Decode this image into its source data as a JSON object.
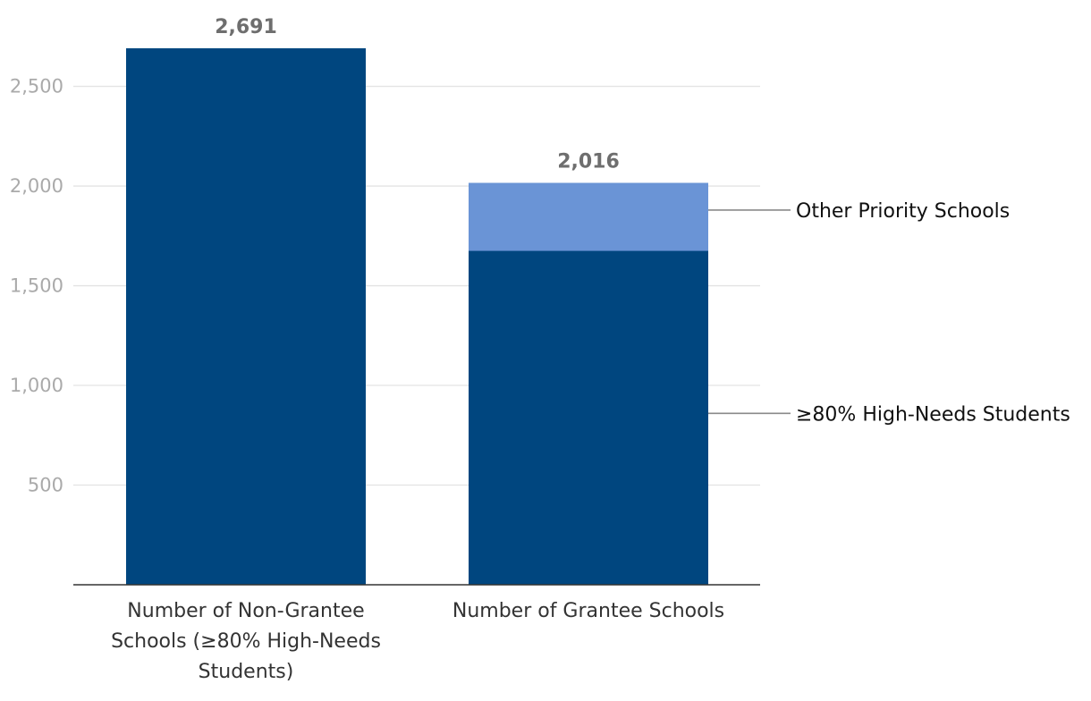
{
  "chart_data": {
    "type": "bar",
    "stacked": true,
    "categories": [
      [
        "Number of Non-Grantee",
        "Schools (≥80% High-Needs",
        "Students)"
      ],
      [
        "Number of Grantee Schools"
      ]
    ],
    "series": [
      {
        "name": "≥80% High-Needs Students",
        "values": [
          2691,
          1675
        ],
        "color": "#00467f"
      },
      {
        "name": "Other Priority Schools",
        "values": [
          0,
          341
        ],
        "color": "#6a94d6"
      }
    ],
    "totals": [
      2691,
      2016
    ],
    "total_labels": [
      "2,691",
      "2,016"
    ],
    "y_ticks": [
      500,
      1000,
      1500,
      2000,
      2500
    ],
    "y_tick_labels": [
      "500",
      "1,000",
      "1,500",
      "2,000",
      "2,500"
    ],
    "ylim": [
      0,
      2691
    ],
    "grid": true,
    "legend": "right, labels attached to stacked segments"
  }
}
